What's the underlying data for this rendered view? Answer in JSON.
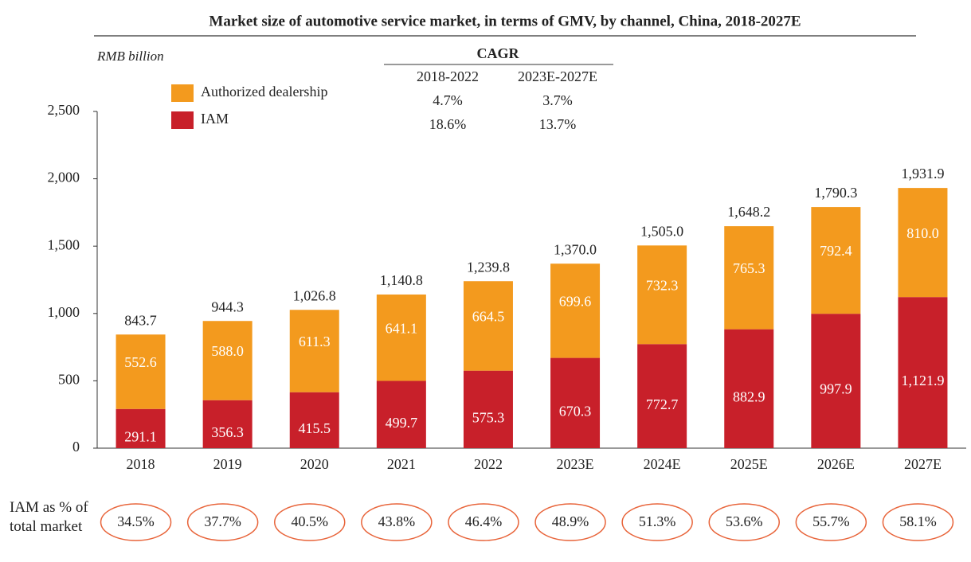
{
  "chart_data": {
    "type": "stacked_bar",
    "title": "Market size of automotive service market, in terms of GMV, by channel, China, 2018-2027E",
    "unit_label": "RMB  billion",
    "categories": [
      "2018",
      "2019",
      "2020",
      "2021",
      "2022",
      "2023E",
      "2024E",
      "2025E",
      "2026E",
      "2027E"
    ],
    "series": [
      {
        "name": "IAM",
        "color": "#c8202a",
        "values": [
          291.1,
          356.3,
          415.5,
          499.7,
          575.3,
          670.3,
          772.7,
          882.9,
          997.9,
          1121.9
        ],
        "value_labels": [
          "291.1",
          "356.3",
          "415.5",
          "499.7",
          "575.3",
          "670.3",
          "772.7",
          "882.9",
          "997.9",
          "1,121.9"
        ]
      },
      {
        "name": "Authorized dealership",
        "color": "#f39a1e",
        "values": [
          552.6,
          588.0,
          611.3,
          641.1,
          664.5,
          699.6,
          732.3,
          765.3,
          792.4,
          810.0
        ],
        "value_labels": [
          "552.6",
          "588.0",
          "611.3",
          "641.1",
          "664.5",
          "699.6",
          "732.3",
          "765.3",
          "792.4",
          "810.0"
        ]
      }
    ],
    "totals": {
      "values": [
        843.7,
        944.3,
        1026.8,
        1140.8,
        1239.8,
        1370.0,
        1505.0,
        1648.2,
        1790.3,
        1931.9
      ],
      "value_labels": [
        "843.7",
        "944.3",
        "1,026.8",
        "1,140.8",
        "1,239.8",
        "1,370.0",
        "1,505.0",
        "1,648.2",
        "1,790.3",
        "1,931.9"
      ]
    },
    "ylim": [
      0,
      2500
    ],
    "yticks": [
      0,
      500,
      {
        "value": 1000,
        "label": "1,000"
      },
      {
        "value": 1500,
        "label": "1,500"
      },
      {
        "value": 2000,
        "label": "2,000"
      },
      {
        "value": 2500,
        "label": "2,500"
      }
    ],
    "cagr": {
      "title": "CAGR",
      "periods": [
        "2018-2022",
        "2023E-2027E"
      ],
      "rows": [
        [
          "4.7%",
          "3.7%"
        ],
        [
          "18.6%",
          "13.7%"
        ]
      ]
    },
    "iam_share": {
      "label": "IAM as % of total market",
      "values": [
        34.5,
        37.7,
        40.5,
        43.8,
        46.4,
        48.9,
        51.3,
        53.6,
        55.7,
        58.1
      ],
      "value_labels": [
        "34.5%",
        "37.7%",
        "40.5%",
        "43.8%",
        "46.4%",
        "48.9%",
        "51.3%",
        "53.6%",
        "55.7%",
        "58.1%"
      ]
    }
  }
}
